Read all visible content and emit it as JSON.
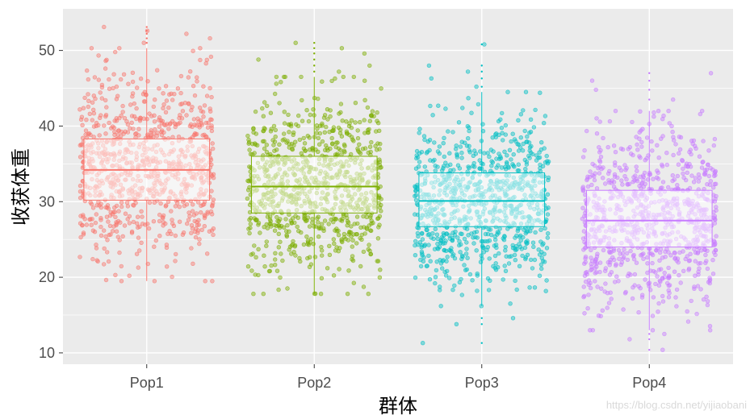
{
  "chart_data": {
    "type": "box_with_jitter",
    "xlabel": "群体",
    "ylabel": "收获体重",
    "categories": [
      "Pop1",
      "Pop2",
      "Pop3",
      "Pop4"
    ],
    "ylim": [
      8.5,
      55.5
    ],
    "yticks": [
      10,
      20,
      30,
      40,
      50
    ],
    "grid": true,
    "legend": "none",
    "series": [
      {
        "name": "Pop1",
        "color": "#F8766D",
        "q1": 30.2,
        "median": 34.2,
        "q3": 38.3,
        "whisker_low": 19.5,
        "whisker_high": 50.3,
        "outliers": [
          51.0,
          51.6,
          52.2,
          52.6,
          53.1
        ]
      },
      {
        "name": "Pop2",
        "color": "#7CAE00",
        "q1": 28.5,
        "median": 32.0,
        "q3": 36.0,
        "whisker_low": 17.8,
        "whisker_high": 46.5,
        "outliers": [
          47.2,
          48.0,
          48.8,
          49.6,
          50.3,
          51.0
        ]
      },
      {
        "name": "Pop3",
        "color": "#00BFC4",
        "q1": 26.7,
        "median": 30.1,
        "q3": 33.8,
        "whisker_low": 16.2,
        "whisker_high": 44.5,
        "outliers": [
          11.3,
          13.8,
          14.6,
          45.2,
          46.3,
          47.2,
          48.0,
          50.8
        ]
      },
      {
        "name": "Pop4",
        "color": "#C77CFF",
        "q1": 24.0,
        "median": 27.5,
        "q3": 31.5,
        "whisker_low": 13.0,
        "whisker_high": 42.0,
        "outliers": [
          10.4,
          11.8,
          12.5,
          43.5,
          44.8,
          46.0,
          47.0
        ]
      }
    ]
  },
  "watermark": "https://blog.csdn.net/yijiaobani"
}
